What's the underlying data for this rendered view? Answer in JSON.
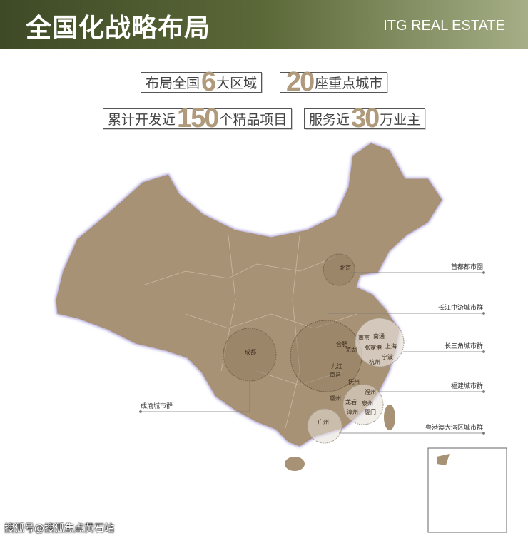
{
  "header": {
    "title": "全国化战略布局",
    "brand": "ITG REAL ESTATE"
  },
  "stats": [
    {
      "pre": "布局全国",
      "num": "6",
      "post": "大区域"
    },
    {
      "pre": "",
      "num": "20",
      "post": "座重点城市"
    },
    {
      "pre": "累计开发近",
      "num": "150",
      "post": "个精品项目"
    },
    {
      "pre": "服务近",
      "num": "30",
      "post": "万业主"
    }
  ],
  "regions": {
    "capital": "首都都市圈",
    "yangtze_mid": "长江中游城市群",
    "yangtze_delta": "长三角城市群",
    "fujian": "福建城市群",
    "gba": "粤港澳大湾区城市群",
    "chengyu": "成渝城市群"
  },
  "cities": {
    "beijing": "北京",
    "chengdu": "成都",
    "nanjing": "南京",
    "nantong": "南通",
    "hefei": "合肥",
    "wuhu": "芜湖",
    "zhangjiagang": "张家港",
    "shanghai": "上海",
    "ningbo": "宁波",
    "hangzhou": "杭州",
    "jiujiang": "九江",
    "nanchang": "南昌",
    "fuzhou_jx": "抚州",
    "ganzhou": "赣州",
    "fuzhou": "福州",
    "longyan": "龙岩",
    "quanzhou": "泉州",
    "zhangzhou": "漳州",
    "xiamen": "厦门",
    "guangzhou": "广州"
  },
  "colors": {
    "map": "#a89276",
    "circle_dark": "#8f7a5e",
    "circle_light": "#e6e0d8",
    "header_start": "#3e4a26",
    "header_end": "#a5ae86",
    "number": "#b09a7c"
  },
  "watermark": "搜狐号@搜狐焦点黄石站"
}
